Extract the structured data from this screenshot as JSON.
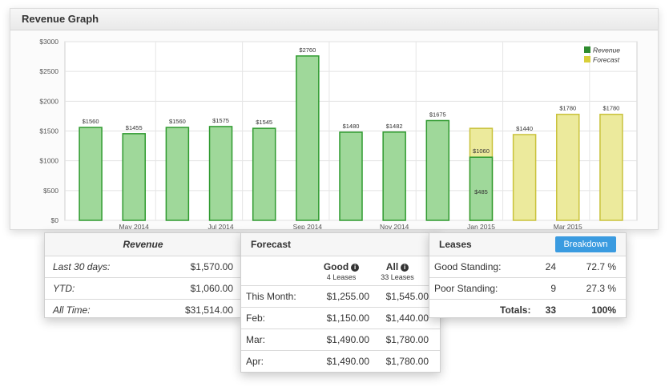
{
  "panel": {
    "title": "Revenue Graph"
  },
  "chart_data": {
    "type": "bar",
    "y_ticks": [
      "$3000",
      "$2500",
      "$2000",
      "$1500",
      "$1000",
      "$500",
      "$0"
    ],
    "ylim": [
      0,
      3000
    ],
    "x_tick_labels": [
      "May 2014",
      "Jul 2014",
      "Sep 2014",
      "Nov 2014",
      "Jan 2015",
      "Mar 2015"
    ],
    "bars": [
      {
        "value": 1560,
        "label": "$1560",
        "series": "Revenue"
      },
      {
        "value": 1455,
        "label": "$1455",
        "series": "Revenue"
      },
      {
        "value": 1560,
        "label": "$1560",
        "series": "Revenue"
      },
      {
        "value": 1575,
        "label": "$1575",
        "series": "Revenue"
      },
      {
        "value": 1545,
        "label": "$1545",
        "series": "Revenue"
      },
      {
        "value": 2760,
        "label": "$2760",
        "series": "Revenue"
      },
      {
        "value": 1480,
        "label": "$1480",
        "series": "Revenue"
      },
      {
        "value": 1482,
        "label": "$1482",
        "series": "Revenue"
      },
      {
        "value": 1675,
        "label": "$1675",
        "series": "Revenue"
      },
      {
        "value": 1060,
        "label": "$1060",
        "series": "Revenue",
        "forecast_value": 1545,
        "inner_label": "$485"
      },
      {
        "value": 1440,
        "label": "$1440",
        "series": "Forecast"
      },
      {
        "value": 1780,
        "label": "$1780",
        "series": "Forecast"
      },
      {
        "value": 1780,
        "label": "$1780",
        "series": "Forecast"
      }
    ],
    "legend": [
      {
        "name": "Revenue",
        "color": "#2e8b2e"
      },
      {
        "name": "Forecast",
        "color": "#d8cf3a"
      }
    ],
    "legend_position": "top-right",
    "grid": true
  },
  "colors": {
    "revenue_fill": "#9fd89a",
    "revenue_stroke": "#2f9a2f",
    "forecast_fill": "#ecea9c",
    "forecast_stroke": "#c9c23b",
    "button": "#3a9be0"
  },
  "revenue_card": {
    "title": "Revenue",
    "rows": [
      {
        "label": "Last 30 days:",
        "value": "$1,570.00"
      },
      {
        "label": "YTD:",
        "value": "$1,060.00"
      },
      {
        "label": "All Time:",
        "value": "$31,514.00"
      }
    ]
  },
  "forecast_card": {
    "title": "Forecast",
    "col1_title": "Good",
    "col1_sub": "4 Leases",
    "col2_title": "All",
    "col2_sub": "33 Leases",
    "info_glyph": "i",
    "rows": [
      {
        "label": "This Month:",
        "good": "$1,255.00",
        "all": "$1,545.00"
      },
      {
        "label": "Feb:",
        "good": "$1,150.00",
        "all": "$1,440.00"
      },
      {
        "label": "Mar:",
        "good": "$1,490.00",
        "all": "$1,780.00"
      },
      {
        "label": "Apr:",
        "good": "$1,490.00",
        "all": "$1,780.00"
      }
    ]
  },
  "leases_card": {
    "title": "Leases",
    "button_label": "Breakdown",
    "rows": [
      {
        "label": "Good Standing:",
        "count": "24",
        "pct": "72.7 %"
      },
      {
        "label": "Poor Standing:",
        "count": "9",
        "pct": "27.3 %"
      }
    ],
    "totals": {
      "label": "Totals:",
      "count": "33",
      "pct": "100%"
    }
  }
}
